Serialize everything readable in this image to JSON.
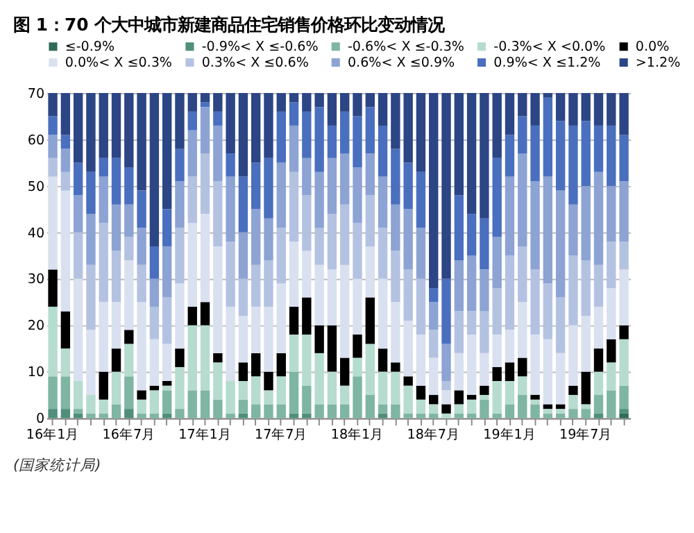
{
  "chart_data": {
    "type": "bar",
    "title": "图 1：70 个大中城市新建商品住宅销售价格环比变动情况",
    "categories": [
      "16年1月",
      null,
      null,
      null,
      null,
      null,
      "16年7月",
      null,
      null,
      null,
      null,
      null,
      "17年1月",
      null,
      null,
      null,
      null,
      null,
      "17年7月",
      null,
      null,
      null,
      null,
      null,
      "18年1月",
      null,
      null,
      null,
      null,
      null,
      "18年7月",
      null,
      null,
      null,
      null,
      null,
      "19年1月",
      null,
      null,
      null,
      null,
      null,
      "19年7月",
      null,
      null,
      null
    ],
    "stacked": true,
    "ylim": [
      0,
      70
    ],
    "yticks": [
      0,
      10,
      20,
      30,
      40,
      50,
      60,
      70
    ],
    "grid": "y",
    "legend": "top",
    "series": [
      {
        "name": "≤-0.9%",
        "color": "#2e6b5a",
        "values": [
          0,
          0,
          0,
          0,
          0,
          0,
          0,
          0,
          0,
          0,
          0,
          0,
          0,
          0,
          0,
          0,
          0,
          0,
          0,
          0,
          0,
          0,
          0,
          0,
          0,
          0,
          0,
          0,
          0,
          0,
          0,
          0,
          0,
          0,
          0,
          0,
          0,
          0,
          0,
          0,
          0,
          0,
          0,
          0,
          0,
          1
        ]
      },
      {
        "name": "-0.9%< X ≤-0.6%",
        "color": "#4f8f7c",
        "values": [
          2,
          2,
          1,
          0,
          0,
          0,
          2,
          0,
          0,
          1,
          0,
          0,
          0,
          0,
          0,
          1,
          0,
          0,
          0,
          1,
          1,
          0,
          0,
          0,
          0,
          0,
          1,
          0,
          0,
          0,
          0,
          0,
          0,
          0,
          0,
          0,
          0,
          0,
          0,
          0,
          0,
          0,
          0,
          1,
          0,
          1
        ]
      },
      {
        "name": "-0.6%< X ≤-0.3%",
        "color": "#7fb5a3",
        "values": [
          7,
          7,
          1,
          1,
          1,
          3,
          7,
          1,
          1,
          5,
          2,
          6,
          6,
          4,
          1,
          3,
          3,
          3,
          3,
          9,
          6,
          3,
          3,
          3,
          9,
          5,
          2,
          3,
          1,
          1,
          1,
          0,
          1,
          1,
          4,
          1,
          3,
          5,
          3,
          1,
          1,
          2,
          2,
          4,
          6,
          5
        ]
      },
      {
        "name": "-0.3%< X <0.0%",
        "color": "#b5dccf",
        "values": [
          15,
          6,
          6,
          4,
          3,
          7,
          7,
          3,
          5,
          1,
          9,
          14,
          14,
          8,
          7,
          4,
          6,
          3,
          6,
          8,
          11,
          11,
          7,
          4,
          4,
          11,
          7,
          7,
          6,
          3,
          2,
          1,
          2,
          3,
          1,
          7,
          5,
          4,
          1,
          1,
          1,
          3,
          1,
          5,
          6,
          10
        ]
      },
      {
        "name": "0.0%",
        "color": "#000000",
        "values": [
          8,
          8,
          0,
          0,
          6,
          5,
          3,
          2,
          1,
          1,
          4,
          4,
          5,
          2,
          0,
          4,
          5,
          4,
          5,
          6,
          8,
          6,
          10,
          6,
          5,
          10,
          5,
          2,
          2,
          3,
          2,
          2,
          3,
          1,
          2,
          3,
          4,
          4,
          1,
          1,
          1,
          2,
          7,
          5,
          5,
          3
        ]
      },
      {
        "name": "0.0%< X ≤0.3%",
        "color": "#d9e0f0",
        "values": [
          20,
          26,
          22,
          14,
          15,
          10,
          15,
          19,
          10,
          8,
          14,
          18,
          19,
          23,
          16,
          10,
          10,
          14,
          15,
          14,
          10,
          13,
          12,
          20,
          12,
          11,
          15,
          13,
          12,
          11,
          8,
          3,
          8,
          13,
          7,
          7,
          7,
          12,
          13,
          14,
          11,
          13,
          12,
          9,
          11,
          12
        ]
      },
      {
        "name": "0.3%< X ≤0.6%",
        "color": "#b4c2e2",
        "values": [
          4,
          4,
          10,
          14,
          17,
          11,
          5,
          8,
          7,
          10,
          12,
          10,
          13,
          14,
          14,
          8,
          9,
          10,
          12,
          15,
          12,
          8,
          12,
          13,
          12,
          11,
          11,
          11,
          11,
          12,
          6,
          2,
          9,
          5,
          9,
          10,
          16,
          12,
          14,
          12,
          12,
          15,
          12,
          9,
          10,
          6
        ]
      },
      {
        "name": "0.6%< X ≤0.9%",
        "color": "#8ca3d4",
        "values": [
          5,
          5,
          8,
          11,
          10,
          10,
          7,
          8,
          6,
          11,
          10,
          10,
          10,
          12,
          14,
          10,
          12,
          9,
          14,
          10,
          8,
          12,
          12,
          11,
          12,
          9,
          11,
          10,
          13,
          11,
          6,
          8,
          11,
          12,
          9,
          11,
          17,
          20,
          19,
          23,
          23,
          11,
          16,
          20,
          12,
          13
        ]
      },
      {
        "name": "0.9%< X ≤1.2%",
        "color": "#4a6fbf",
        "values": [
          4,
          3,
          7,
          9,
          4,
          10,
          8,
          8,
          7,
          8,
          7,
          4,
          1,
          3,
          5,
          12,
          10,
          13,
          11,
          5,
          10,
          14,
          7,
          9,
          11,
          10,
          11,
          12,
          10,
          12,
          3,
          14,
          14,
          9,
          11,
          17,
          9,
          8,
          12,
          17,
          15,
          17,
          14,
          10,
          13,
          10
        ]
      },
      {
        "name": ">1.2%",
        "color": "#2b4585",
        "values": [
          5,
          9,
          15,
          17,
          14,
          14,
          16,
          21,
          33,
          25,
          12,
          4,
          2,
          4,
          13,
          18,
          15,
          14,
          4,
          2,
          4,
          3,
          7,
          4,
          5,
          3,
          7,
          12,
          15,
          17,
          42,
          40,
          22,
          26,
          27,
          14,
          9,
          5,
          7,
          1,
          6,
          7,
          6,
          7,
          7,
          9
        ]
      }
    ],
    "annotations": [
      "(国家统计局)"
    ]
  }
}
